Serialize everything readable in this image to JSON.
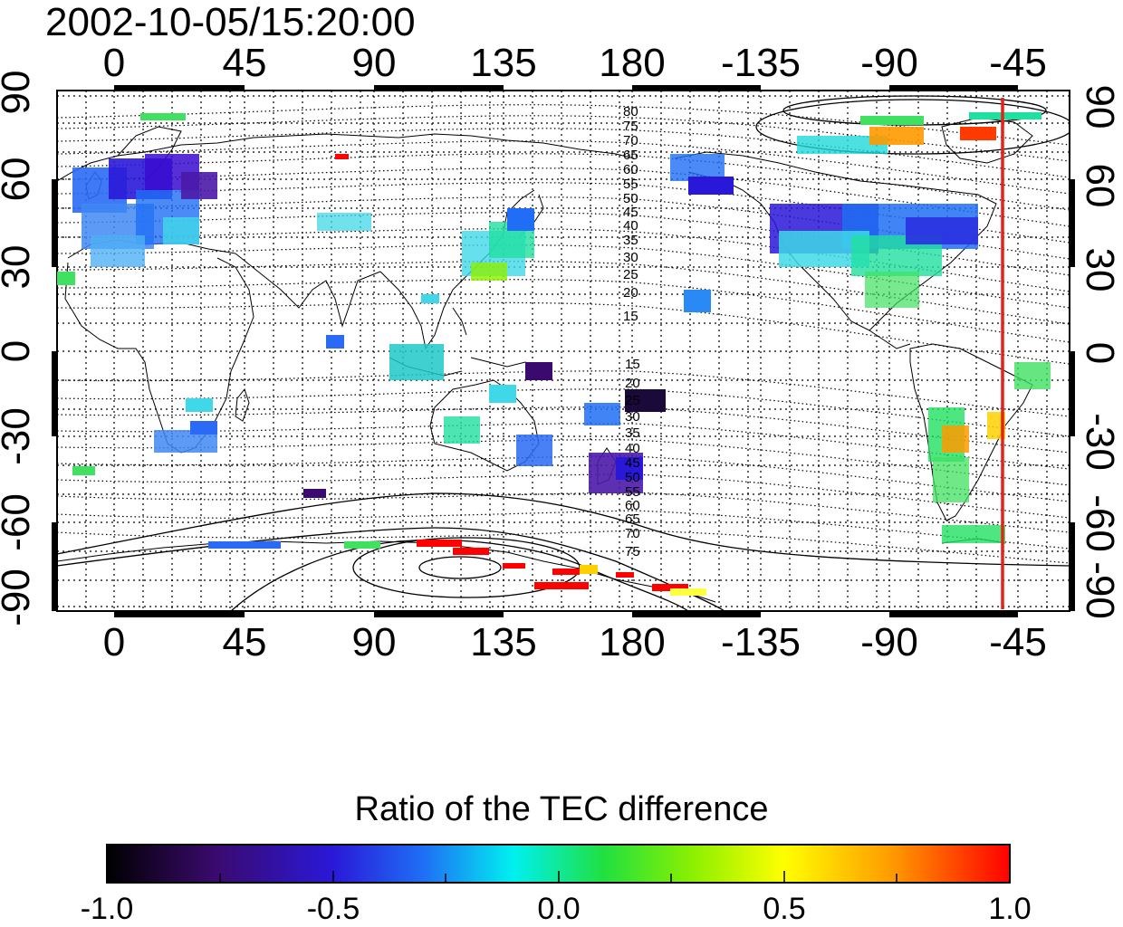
{
  "map": {
    "title": "2002-10-05/15:20:00",
    "x_ticks": [
      "0",
      "45",
      "90",
      "135",
      "180",
      "-135",
      "-90",
      "-45"
    ],
    "y_ticks_left": [
      "90",
      "60",
      "30",
      "0",
      "-30",
      "-60",
      "-90"
    ],
    "y_ticks_right": [
      "90",
      "60",
      "30",
      "0",
      "-30",
      "-60",
      "-90"
    ],
    "contour_labels_north": [
      "80",
      "75",
      "70",
      "65",
      "60",
      "55",
      "50",
      "45",
      "40",
      "35",
      "30",
      "25",
      "20",
      "15"
    ],
    "contour_labels_south": [
      "15",
      "20",
      "25",
      "30",
      "35",
      "40",
      "45",
      "50",
      "55",
      "60",
      "65",
      "70",
      "75"
    ],
    "terminator_color": "#e8201a"
  },
  "colorbar": {
    "title": "Ratio of the TEC difference",
    "min": -1.0,
    "max": 1.0,
    "tick_labels": [
      "-1.0",
      "-0.5",
      "0.0",
      "0.5",
      "1.0"
    ],
    "colormap": [
      "#000000",
      "#3a0a6e",
      "#2a18d8",
      "#1f6ef5",
      "#00f0f0",
      "#20e040",
      "#8cf000",
      "#ffff00",
      "#ff9a00",
      "#ff0000"
    ]
  }
}
